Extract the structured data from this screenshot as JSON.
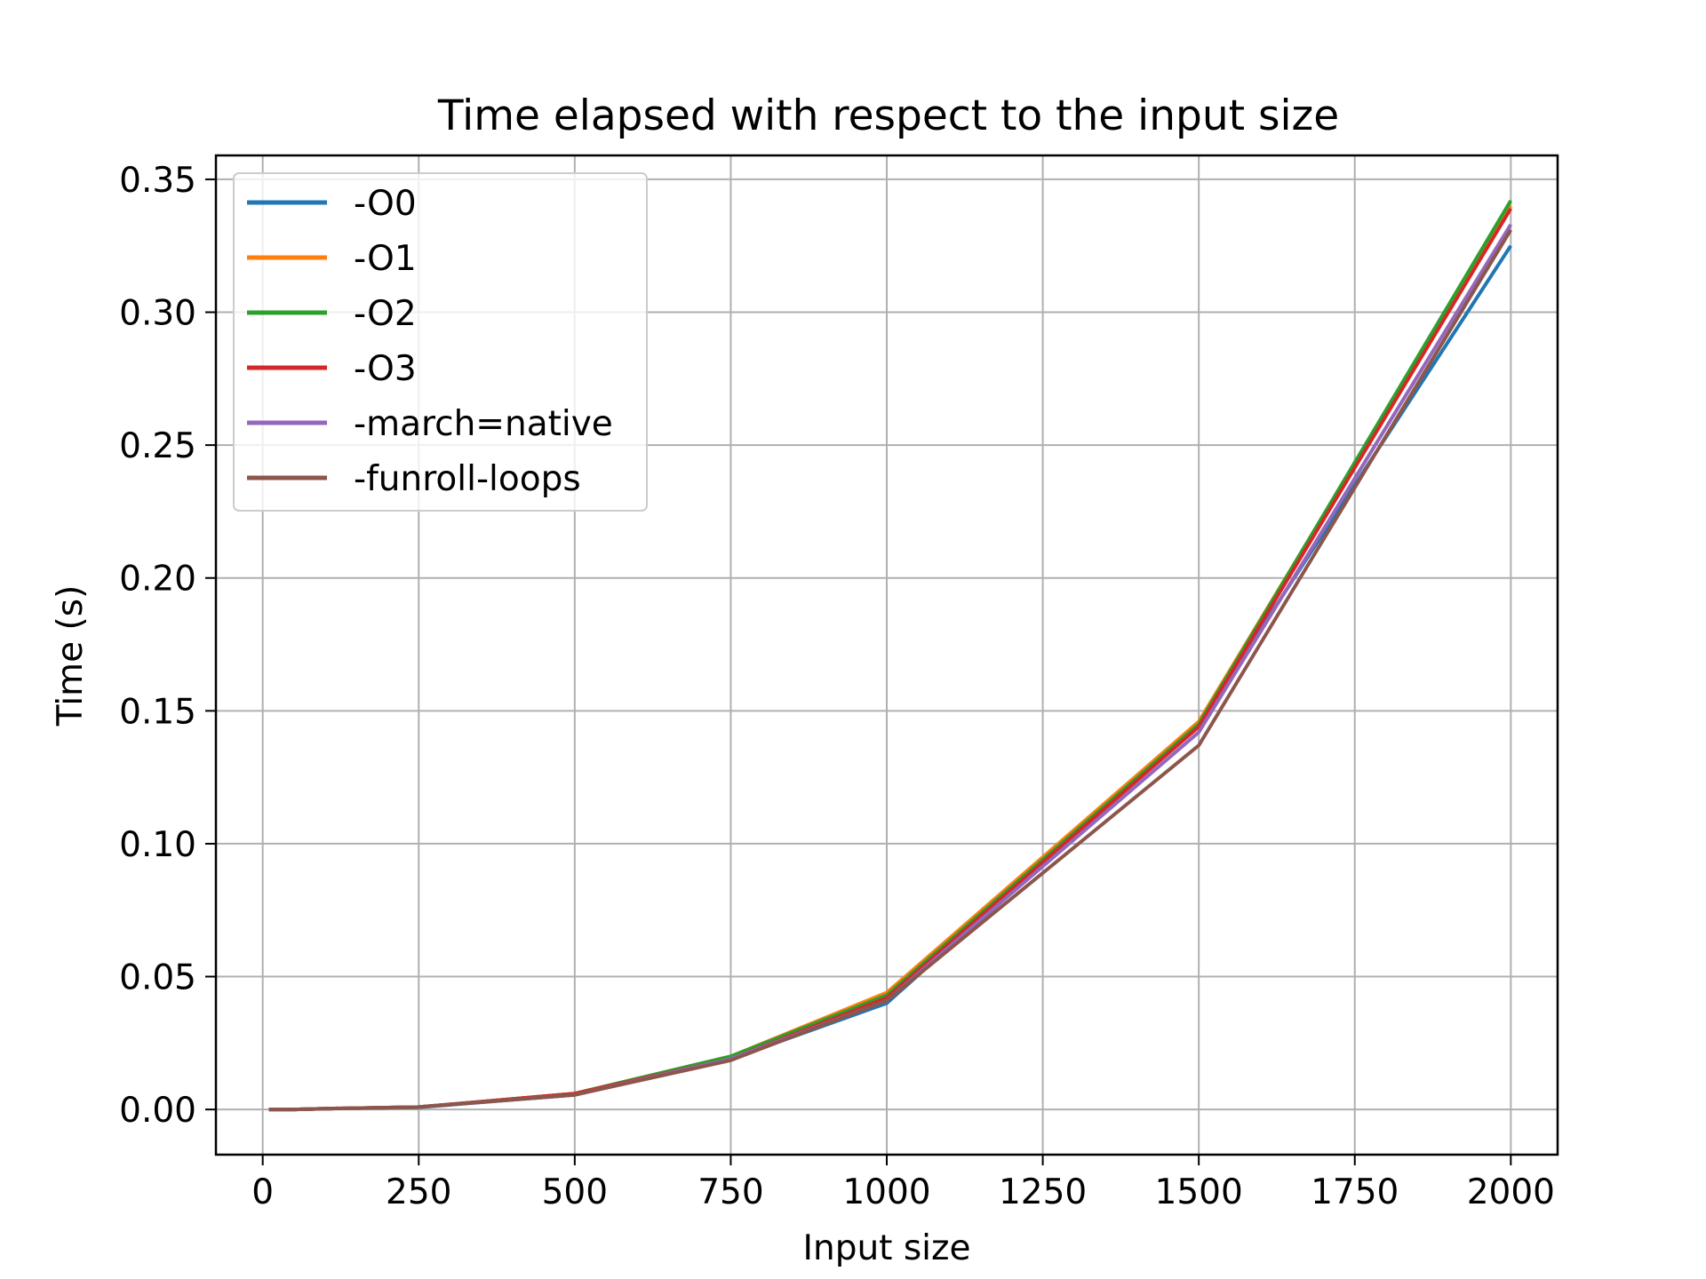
{
  "chart_data": {
    "type": "line",
    "title": "Time elapsed with respect to the input size",
    "xlabel": "Input size",
    "ylabel": "Time (s)",
    "xlim": [
      -75,
      2075
    ],
    "ylim": [
      -0.017,
      0.359
    ],
    "xticks": [
      0,
      250,
      500,
      750,
      1000,
      1250,
      1500,
      1750,
      2000
    ],
    "xtick_labels": [
      "0",
      "250",
      "500",
      "750",
      "1000",
      "1250",
      "1500",
      "1750",
      "2000"
    ],
    "yticks": [
      0.0,
      0.05,
      0.1,
      0.15,
      0.2,
      0.25,
      0.3,
      0.35
    ],
    "ytick_labels": [
      "0.00",
      "0.05",
      "0.10",
      "0.15",
      "0.20",
      "0.25",
      "0.30",
      "0.35"
    ],
    "grid": true,
    "legend_position": "top-left",
    "x": [
      10,
      50,
      100,
      250,
      500,
      750,
      1000,
      1500,
      2000
    ],
    "series": [
      {
        "name": "-O0",
        "color": "#1f77b4",
        "values": [
          0.0,
          0.0,
          0.0003,
          0.0008,
          0.0055,
          0.019,
          0.04,
          0.145,
          0.325
        ]
      },
      {
        "name": "-O1",
        "color": "#ff7f0e",
        "values": [
          0.0,
          0.0,
          0.0003,
          0.0009,
          0.006,
          0.02,
          0.044,
          0.146,
          0.34
        ]
      },
      {
        "name": "-O2",
        "color": "#2ca02c",
        "values": [
          0.0,
          0.0,
          0.0003,
          0.0009,
          0.006,
          0.02,
          0.043,
          0.145,
          0.342
        ]
      },
      {
        "name": "-O3",
        "color": "#d62728",
        "values": [
          0.0,
          0.0,
          0.0003,
          0.0009,
          0.006,
          0.019,
          0.042,
          0.144,
          0.339
        ]
      },
      {
        "name": "-march=native",
        "color": "#9467bd",
        "values": [
          0.0,
          0.0,
          0.0003,
          0.0009,
          0.0055,
          0.019,
          0.041,
          0.142,
          0.333
        ]
      },
      {
        "name": "-funroll-loops",
        "color": "#8c564b",
        "values": [
          0.0,
          0.0,
          0.0003,
          0.0009,
          0.0055,
          0.0185,
          0.041,
          0.137,
          0.331
        ]
      }
    ]
  }
}
